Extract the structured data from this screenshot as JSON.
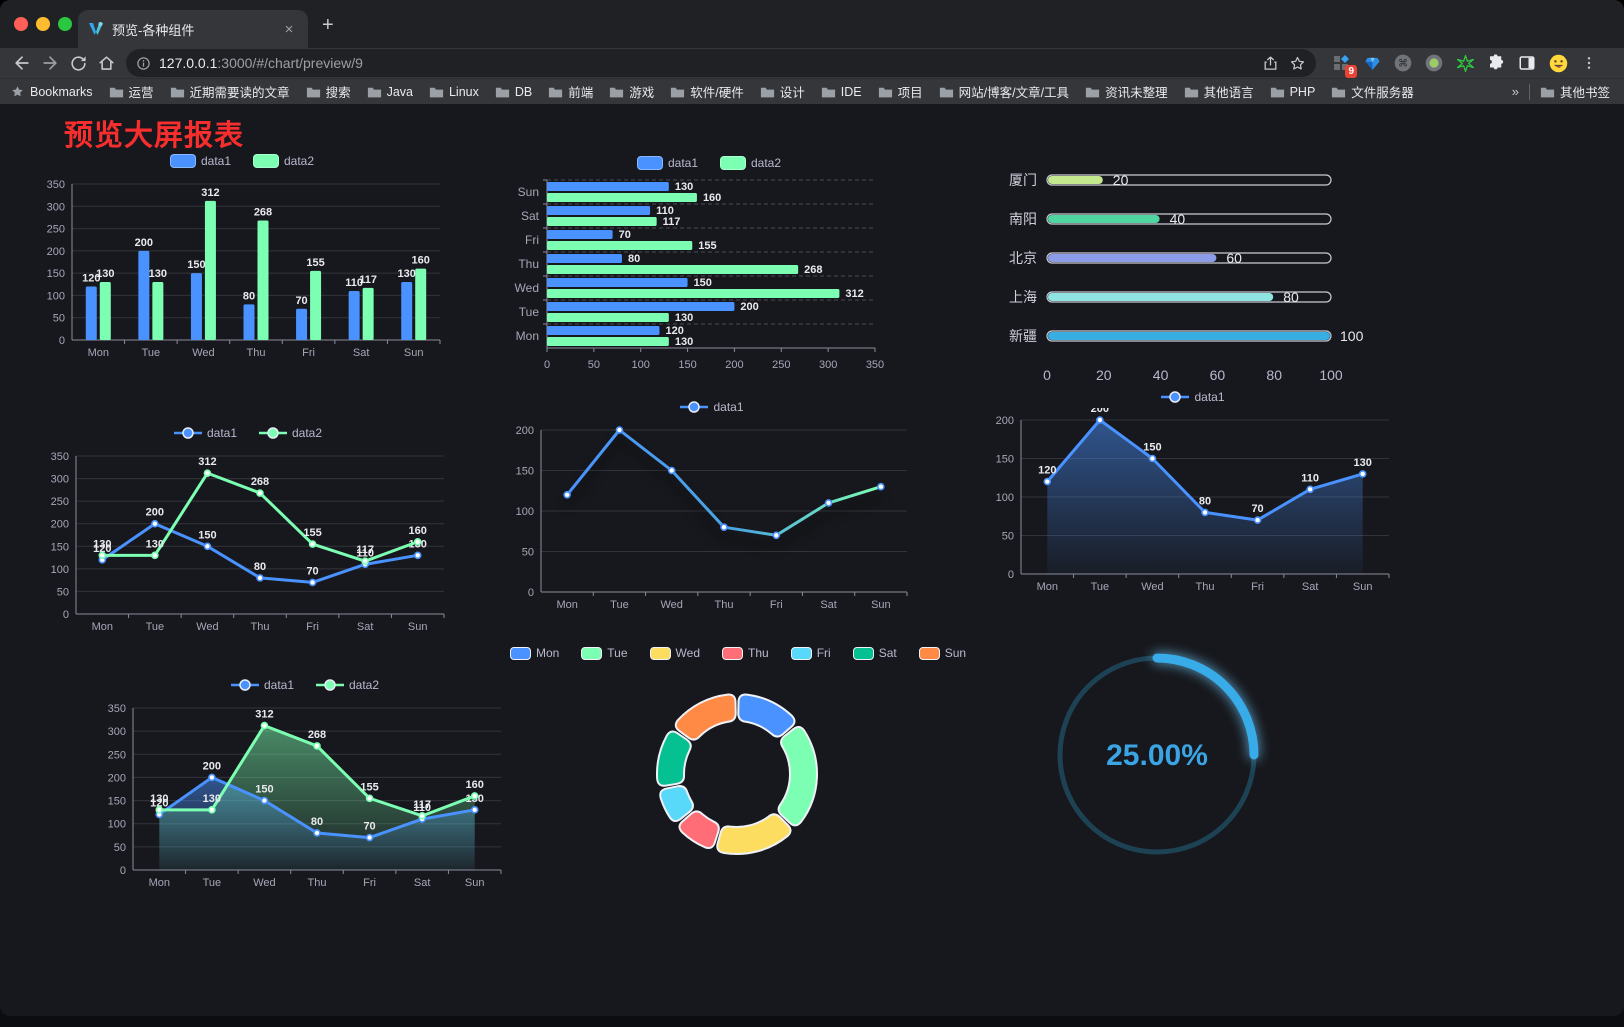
{
  "browser": {
    "tab": {
      "title": "预览-各种组件",
      "close_glyph": "×",
      "new_tab_glyph": "+"
    },
    "address": {
      "host": "127.0.0.1",
      "rest": ":3000/#/chart/preview/9"
    },
    "extensions_badge": "9",
    "bookmarks": {
      "label": "Bookmarks",
      "items": [
        "运营",
        "近期需要读的文章",
        "搜索",
        "Java",
        "Linux",
        "DB",
        "前端",
        "游戏",
        "软件/硬件",
        "设计",
        "IDE",
        "项目",
        "网站/博客/文章/工具",
        "资讯未整理",
        "其他语言",
        "PHP",
        "文件服务器"
      ],
      "overflow_glyph": "»",
      "other_label": "其他书签"
    }
  },
  "page": {
    "title": "预览大屏报表",
    "title_color": "#f62e2e"
  },
  "chart_data": [
    {
      "type": "bar",
      "categories": [
        "Mon",
        "Tue",
        "Wed",
        "Thu",
        "Fri",
        "Sat",
        "Sun"
      ],
      "series": [
        {
          "name": "data1",
          "color": "#4992ff",
          "values": [
            120,
            200,
            150,
            80,
            70,
            110,
            130
          ]
        },
        {
          "name": "data2",
          "color": "#7cffb2",
          "values": [
            130,
            130,
            312,
            268,
            155,
            117,
            160
          ]
        }
      ],
      "ylim": [
        0,
        350
      ],
      "ytick": 50
    },
    {
      "type": "bar-horizontal",
      "categories": [
        "Sun",
        "Sat",
        "Fri",
        "Thu",
        "Wed",
        "Tue",
        "Mon"
      ],
      "series": [
        {
          "name": "data1",
          "color": "#4992ff",
          "values": [
            130,
            110,
            70,
            80,
            150,
            200,
            120
          ]
        },
        {
          "name": "data2",
          "color": "#7cffb2",
          "values": [
            160,
            117,
            155,
            268,
            312,
            130,
            130
          ]
        }
      ],
      "xlim": [
        0,
        350
      ],
      "xtick": 50
    },
    {
      "type": "bar-progress",
      "items": [
        {
          "label": "厦门",
          "value": 20,
          "color": "#c3e88d"
        },
        {
          "label": "南阳",
          "value": 40,
          "color": "#4fd6a0"
        },
        {
          "label": "北京",
          "value": 60,
          "color": "#8c9ce8"
        },
        {
          "label": "上海",
          "value": 80,
          "color": "#8fe4e1"
        },
        {
          "label": "新疆",
          "value": 100,
          "color": "#38aee3"
        }
      ],
      "xlim": [
        0,
        100
      ],
      "xticks": [
        0,
        20,
        40,
        60,
        80,
        100
      ]
    },
    {
      "type": "line",
      "categories": [
        "Mon",
        "Tue",
        "Wed",
        "Thu",
        "Fri",
        "Sat",
        "Sun"
      ],
      "series": [
        {
          "name": "data1",
          "color": "#4992ff",
          "values": [
            120,
            200,
            150,
            80,
            70,
            110,
            130
          ],
          "labels": true
        },
        {
          "name": "data2",
          "color": "#7cffb2",
          "values": [
            130,
            130,
            312,
            268,
            155,
            117,
            160
          ],
          "labels": true
        }
      ],
      "ylim": [
        0,
        350
      ],
      "ytick": 50
    },
    {
      "type": "line",
      "categories": [
        "Mon",
        "Tue",
        "Wed",
        "Thu",
        "Fri",
        "Sat",
        "Sun"
      ],
      "series": [
        {
          "name": "data1",
          "gradient": [
            "#4992ff",
            "#7cffb2"
          ],
          "values": [
            120,
            200,
            150,
            80,
            70,
            110,
            130
          ],
          "labels": false,
          "shadow": true
        }
      ],
      "ylim": [
        0,
        200
      ],
      "ytick": 50
    },
    {
      "type": "line",
      "categories": [
        "Mon",
        "Tue",
        "Wed",
        "Thu",
        "Fri",
        "Sat",
        "Sun"
      ],
      "series": [
        {
          "name": "data1",
          "color": "#4992ff",
          "values": [
            120,
            200,
            150,
            80,
            70,
            110,
            130
          ],
          "labels": true,
          "area": true
        }
      ],
      "ylim": [
        0,
        200
      ],
      "ytick": 50
    },
    {
      "type": "line",
      "categories": [
        "Mon",
        "Tue",
        "Wed",
        "Thu",
        "Fri",
        "Sat",
        "Sun"
      ],
      "series": [
        {
          "name": "data1",
          "color": "#4992ff",
          "values": [
            120,
            200,
            150,
            80,
            70,
            110,
            130
          ],
          "labels": true,
          "area": true
        },
        {
          "name": "data2",
          "color": "#7cffb2",
          "values": [
            130,
            130,
            312,
            268,
            155,
            117,
            160
          ],
          "labels": true,
          "area": true
        }
      ],
      "ylim": [
        0,
        350
      ],
      "ytick": 50
    },
    {
      "type": "pie",
      "categories": [
        "Mon",
        "Tue",
        "Wed",
        "Thu",
        "Fri",
        "Sat",
        "Sun"
      ],
      "values": [
        120,
        200,
        150,
        80,
        70,
        110,
        130
      ],
      "colors": [
        "#4992ff",
        "#7cffb2",
        "#fddd60",
        "#ff6e76",
        "#58d9f9",
        "#05c091",
        "#ff8a45"
      ]
    },
    {
      "type": "gauge",
      "percent": 25,
      "label": "25.00%",
      "color": "#38ace8",
      "track": "#1d4254"
    }
  ]
}
